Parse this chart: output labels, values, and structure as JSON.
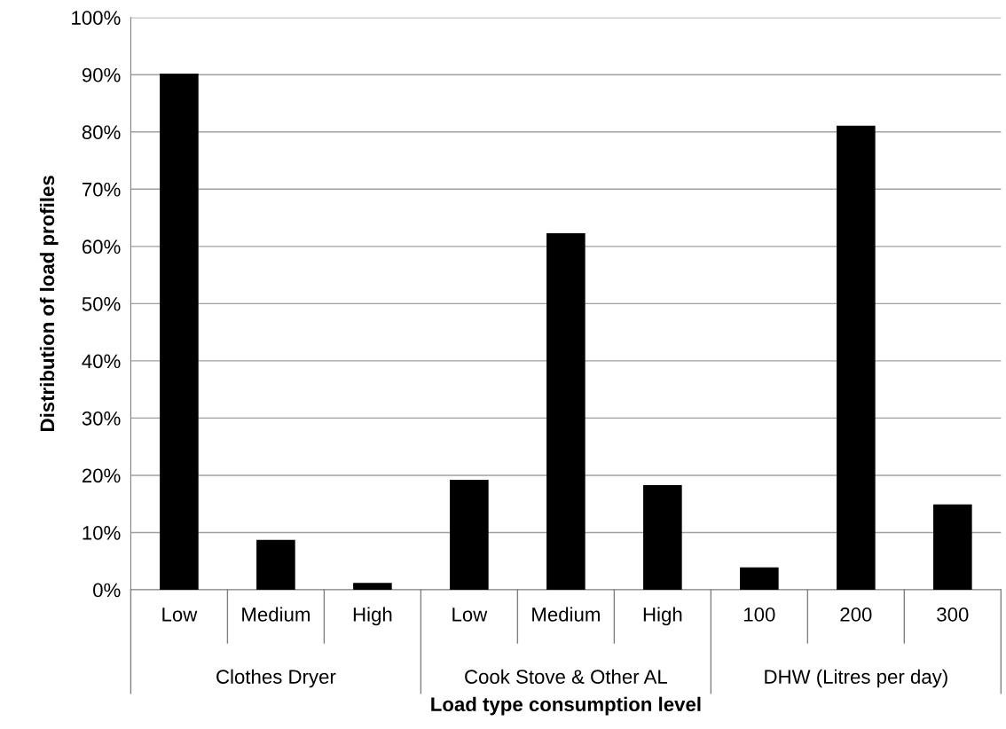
{
  "chart_data": {
    "type": "bar",
    "xlabel": "Load type consumption level",
    "ylabel": "Distribution of load profiles",
    "categories": [
      "Low",
      "Medium",
      "High",
      "Low",
      "Medium",
      "High",
      "100",
      "200",
      "300"
    ],
    "values": [
      90.2,
      8.7,
      1.2,
      19.2,
      62.3,
      18.3,
      3.9,
      81.1,
      14.9
    ],
    "color": "#000000",
    "annotations": [
      "Clothes Dryer",
      "Cook Stove & Other AL",
      "DHW (Litres per day)"
    ],
    "ylim": [
      0,
      100
    ],
    "yticks": [
      {
        "value": 0,
        "label": "0%"
      },
      {
        "value": 10,
        "label": "10%"
      },
      {
        "value": 20,
        "label": "20%"
      },
      {
        "value": 30,
        "label": "30%"
      },
      {
        "value": 40,
        "label": "40%"
      },
      {
        "value": 50,
        "label": "50%"
      },
      {
        "value": 60,
        "label": "60%"
      },
      {
        "value": 70,
        "label": "70%"
      },
      {
        "value": 80,
        "label": "80%"
      },
      {
        "value": 90,
        "label": "90%"
      },
      {
        "value": 100,
        "label": "100%"
      }
    ],
    "grid": "y",
    "legend": false
  }
}
